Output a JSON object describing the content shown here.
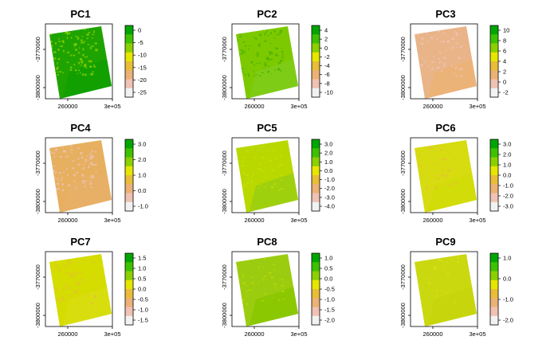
{
  "figure": {
    "panels": [
      {
        "title": "PC1",
        "scale": "equalized",
        "legend_ticks": [
          "0",
          "-5",
          "-10",
          "-15",
          "-20",
          "-25"
        ]
      },
      {
        "title": "PC2",
        "scale": "equalized",
        "legend_ticks": [
          "4",
          "2",
          "0",
          "-2",
          "-4",
          "-6",
          "-8",
          "-10"
        ]
      },
      {
        "title": "PC3",
        "scale": "equalized",
        "legend_ticks": [
          "10",
          "8",
          "6",
          "4",
          "2",
          "0",
          "-2"
        ]
      },
      {
        "title": "PC4",
        "scale": "equalized",
        "legend_ticks": [
          "3.0",
          "2.0",
          "1.0",
          "0.0",
          "-1.0"
        ]
      },
      {
        "title": "PC5",
        "scale": "equalized",
        "legend_ticks": [
          "3.0",
          "2.0",
          "1.0",
          "0.0",
          "-1.0",
          "-2.0",
          "-3.0",
          "-4.0"
        ]
      },
      {
        "title": "PC6",
        "scale": "equalized",
        "legend_ticks": [
          "3.0",
          "2.0",
          "1.0",
          "0.0",
          "-1.0",
          "-2.0",
          "-3.0"
        ]
      },
      {
        "title": "PC7",
        "scale": "equalized",
        "legend_ticks": [
          "1.5",
          "1.0",
          "0.5",
          "0.0",
          "-0.5",
          "-1.0",
          "-1.5"
        ]
      },
      {
        "title": "PC8",
        "scale": "equalized",
        "legend_ticks": [
          "1.0",
          "0.5",
          "0.0",
          "-0.5",
          "-1.0",
          "-1.5",
          "-2.0"
        ]
      },
      {
        "title": "PC9",
        "scale": "equalized",
        "legend_ticks": [
          "1.0",
          "0.0",
          "-1.0",
          "-2.0"
        ]
      }
    ],
    "x_tick_labels": [
      "260000",
      "3e+05"
    ],
    "y_tick_labels": [
      "-3770000",
      "-3800000"
    ],
    "colors": {
      "ramp": [
        "#00a600",
        "#3ec100",
        "#8bd000",
        "#e6e600",
        "#e9bd3a",
        "#ecb176",
        "#efc2b3",
        "#f2f2f2"
      ],
      "frame": "#000000"
    }
  },
  "chart_data": [
    {
      "type": "heatmap",
      "title": "PC1",
      "x_ticks": [
        260000,
        300000
      ],
      "y_ticks": [
        -3770000,
        -3800000
      ],
      "legend_breaks": [
        0,
        -5,
        -10,
        -15,
        -20,
        -25
      ],
      "value_range": [
        -26,
        3
      ]
    },
    {
      "type": "heatmap",
      "title": "PC2",
      "x_ticks": [
        260000,
        300000
      ],
      "y_ticks": [
        -3770000,
        -3800000
      ],
      "legend_breaks": [
        4,
        2,
        0,
        -2,
        -4,
        -6,
        -8,
        -10
      ],
      "value_range": [
        -10.5,
        5.5
      ]
    },
    {
      "type": "heatmap",
      "title": "PC3",
      "x_ticks": [
        260000,
        300000
      ],
      "y_ticks": [
        -3770000,
        -3800000
      ],
      "legend_breaks": [
        10,
        8,
        6,
        4,
        2,
        0,
        -2
      ],
      "value_range": [
        -3,
        10.5
      ]
    },
    {
      "type": "heatmap",
      "title": "PC4",
      "x_ticks": [
        260000,
        300000
      ],
      "y_ticks": [
        -3770000,
        -3800000
      ],
      "legend_breaks": [
        3.0,
        2.0,
        1.0,
        0.0,
        -1.0
      ],
      "value_range": [
        -1.5,
        3.5
      ]
    },
    {
      "type": "heatmap",
      "title": "PC5",
      "x_ticks": [
        260000,
        300000
      ],
      "y_ticks": [
        -3770000,
        -3800000
      ],
      "legend_breaks": [
        3.0,
        2.0,
        1.0,
        0.0,
        -1.0,
        -2.0,
        -3.0,
        -4.0
      ],
      "value_range": [
        -4.5,
        3.5
      ]
    },
    {
      "type": "heatmap",
      "title": "PC6",
      "x_ticks": [
        260000,
        300000
      ],
      "y_ticks": [
        -3770000,
        -3800000
      ],
      "legend_breaks": [
        3.0,
        2.0,
        1.0,
        0.0,
        -1.0,
        -2.0,
        -3.0
      ],
      "value_range": [
        -3.5,
        4
      ]
    },
    {
      "type": "heatmap",
      "title": "PC7",
      "x_ticks": [
        260000,
        300000
      ],
      "y_ticks": [
        -3770000,
        -3800000
      ],
      "legend_breaks": [
        1.5,
        1.0,
        0.5,
        0.0,
        -0.5,
        -1.0,
        -1.5
      ],
      "value_range": [
        -1.8,
        1.8
      ]
    },
    {
      "type": "heatmap",
      "title": "PC8",
      "x_ticks": [
        260000,
        300000
      ],
      "y_ticks": [
        -3770000,
        -3800000
      ],
      "legend_breaks": [
        1.0,
        0.5,
        0.0,
        -0.5,
        -1.0,
        -1.5,
        -2.0
      ],
      "value_range": [
        -2.3,
        1.3
      ]
    },
    {
      "type": "heatmap",
      "title": "PC9",
      "x_ticks": [
        260000,
        300000
      ],
      "y_ticks": [
        -3770000,
        -3800000
      ],
      "legend_breaks": [
        1.0,
        0.0,
        -1.0,
        -2.0
      ],
      "value_range": [
        -2.4,
        2
      ]
    }
  ]
}
